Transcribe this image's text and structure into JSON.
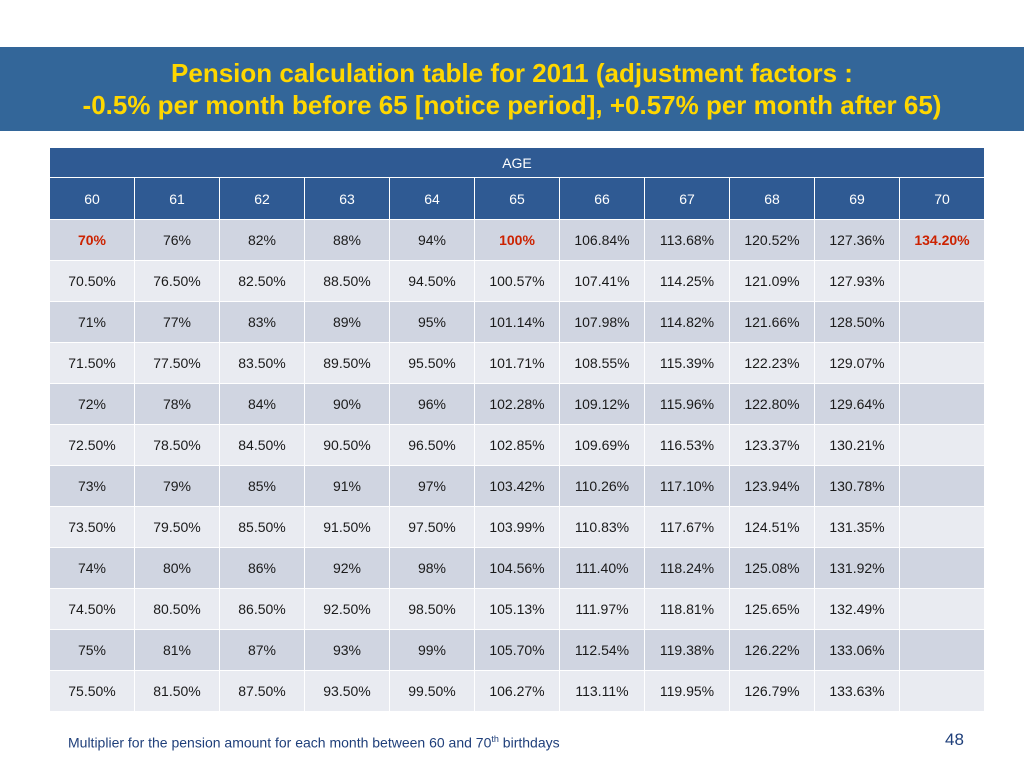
{
  "title": {
    "line1": "Pension calculation table for 2011 (adjustment factors :",
    "line2": "-0.5% per month before 65 [notice period], +0.57% per month after 65)"
  },
  "colors": {
    "title_bg": "#336699",
    "title_text": "#ffd700",
    "header_bg": "#2f5a93",
    "highlight": "#cc2200"
  },
  "table": {
    "group_header": "AGE",
    "ages": [
      "60",
      "61",
      "62",
      "63",
      "64",
      "65",
      "66",
      "67",
      "68",
      "69",
      "70"
    ],
    "rows": [
      [
        "70%",
        "76%",
        "82%",
        "88%",
        "94%",
        "100%",
        "106.84%",
        "113.68%",
        "120.52%",
        "127.36%",
        "134.20%"
      ],
      [
        "70.50%",
        "76.50%",
        "82.50%",
        "88.50%",
        "94.50%",
        "100.57%",
        "107.41%",
        "114.25%",
        "121.09%",
        "127.93%",
        ""
      ],
      [
        "71%",
        "77%",
        "83%",
        "89%",
        "95%",
        "101.14%",
        "107.98%",
        "114.82%",
        "121.66%",
        "128.50%",
        ""
      ],
      [
        "71.50%",
        "77.50%",
        "83.50%",
        "89.50%",
        "95.50%",
        "101.71%",
        "108.55%",
        "115.39%",
        "122.23%",
        "129.07%",
        ""
      ],
      [
        "72%",
        "78%",
        "84%",
        "90%",
        "96%",
        "102.28%",
        "109.12%",
        "115.96%",
        "122.80%",
        "129.64%",
        ""
      ],
      [
        "72.50%",
        "78.50%",
        "84.50%",
        "90.50%",
        "96.50%",
        "102.85%",
        "109.69%",
        "116.53%",
        "123.37%",
        "130.21%",
        ""
      ],
      [
        "73%",
        "79%",
        "85%",
        "91%",
        "97%",
        "103.42%",
        "110.26%",
        "117.10%",
        "123.94%",
        "130.78%",
        ""
      ],
      [
        "73.50%",
        "79.50%",
        "85.50%",
        "91.50%",
        "97.50%",
        "103.99%",
        "110.83%",
        "117.67%",
        "124.51%",
        "131.35%",
        ""
      ],
      [
        "74%",
        "80%",
        "86%",
        "92%",
        "98%",
        "104.56%",
        "111.40%",
        "118.24%",
        "125.08%",
        "131.92%",
        ""
      ],
      [
        "74.50%",
        "80.50%",
        "86.50%",
        "92.50%",
        "98.50%",
        "105.13%",
        "111.97%",
        "118.81%",
        "125.65%",
        "132.49%",
        ""
      ],
      [
        "75%",
        "81%",
        "87%",
        "93%",
        "99%",
        "105.70%",
        "112.54%",
        "119.38%",
        "126.22%",
        "133.06%",
        ""
      ],
      [
        "75.50%",
        "81.50%",
        "87.50%",
        "93.50%",
        "99.50%",
        "106.27%",
        "113.11%",
        "119.95%",
        "126.79%",
        "133.63%",
        ""
      ]
    ],
    "highlighted": [
      "0-0",
      "0-5",
      "0-10"
    ]
  },
  "footnote": {
    "text": "Multiplier for the pension amount for each month between 60 and 70",
    "sup": "th",
    "suffix": " birthdays"
  },
  "page_number": "48"
}
